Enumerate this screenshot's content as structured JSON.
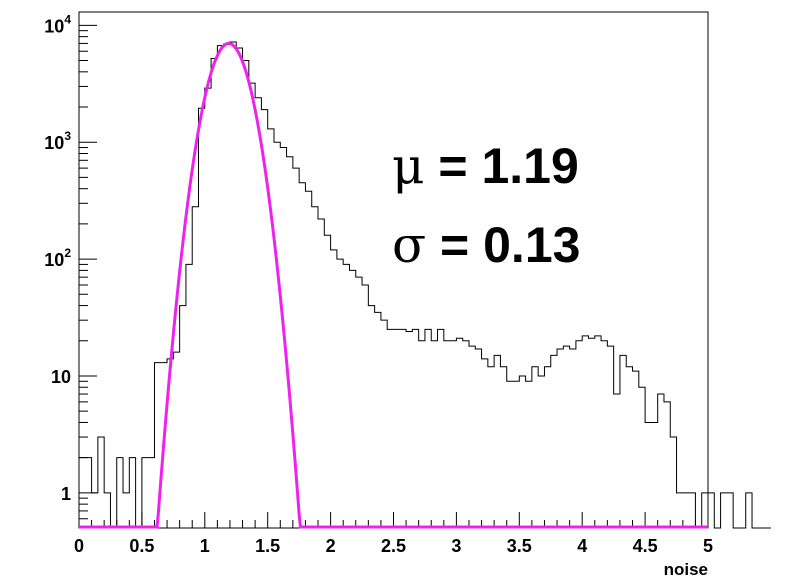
{
  "chart_data": {
    "type": "histogram",
    "title": "",
    "xlabel": "noise",
    "ylabel": "",
    "xlim": [
      0,
      5
    ],
    "ylim": [
      0.5,
      13000
    ],
    "yscale": "log",
    "grid": false,
    "legend": "none",
    "x_ticks": [
      "0",
      "0.5",
      "1",
      "1.5",
      "2",
      "2.5",
      "3",
      "3.5",
      "4",
      "4.5",
      "5"
    ],
    "x_tick_values": [
      0,
      0.5,
      1,
      1.5,
      2,
      2.5,
      3,
      3.5,
      4,
      4.5,
      5
    ],
    "y_ticks": [
      {
        "value": 1,
        "base": "1",
        "exp": ""
      },
      {
        "value": 10,
        "base": "10",
        "exp": ""
      },
      {
        "value": 100,
        "base": "10",
        "exp": "2"
      },
      {
        "value": 1000,
        "base": "10",
        "exp": "3"
      },
      {
        "value": 10000,
        "base": "10",
        "exp": "4"
      }
    ],
    "bin_width": 0.05,
    "bin_start": 0,
    "histogram_counts": [
      2,
      2,
      1,
      3,
      1,
      0,
      2,
      1,
      2,
      0,
      2,
      2,
      13,
      13,
      14,
      16,
      40,
      90,
      280,
      1950,
      2900,
      5200,
      6700,
      6900,
      7200,
      6400,
      5000,
      3200,
      2400,
      1900,
      1300,
      1000,
      900,
      750,
      600,
      450,
      380,
      280,
      220,
      160,
      120,
      100,
      90,
      80,
      70,
      60,
      40,
      35,
      30,
      25,
      25,
      25,
      24,
      25,
      20,
      25,
      20,
      25,
      20,
      20,
      21,
      20,
      18,
      17,
      14,
      12,
      15,
      12,
      9,
      9,
      10,
      9,
      12,
      10,
      12,
      15,
      17,
      18,
      17,
      20,
      22,
      21,
      22,
      20,
      18,
      7,
      15,
      12,
      11,
      8,
      4,
      4,
      7,
      6,
      3,
      1,
      1,
      1,
      0,
      1,
      1,
      0,
      1,
      1,
      0,
      0,
      1,
      0,
      0,
      0
    ],
    "fit": {
      "type": "gaussian",
      "mean": 1.19,
      "sigma": 0.13,
      "amplitude": 7000,
      "color": "#ee22ee"
    },
    "histogram_color": "#000000",
    "annotations": [
      {
        "symbol": "μ",
        "text": " = 1.19"
      },
      {
        "symbol": "σ",
        "text": " = 0.13"
      }
    ]
  }
}
